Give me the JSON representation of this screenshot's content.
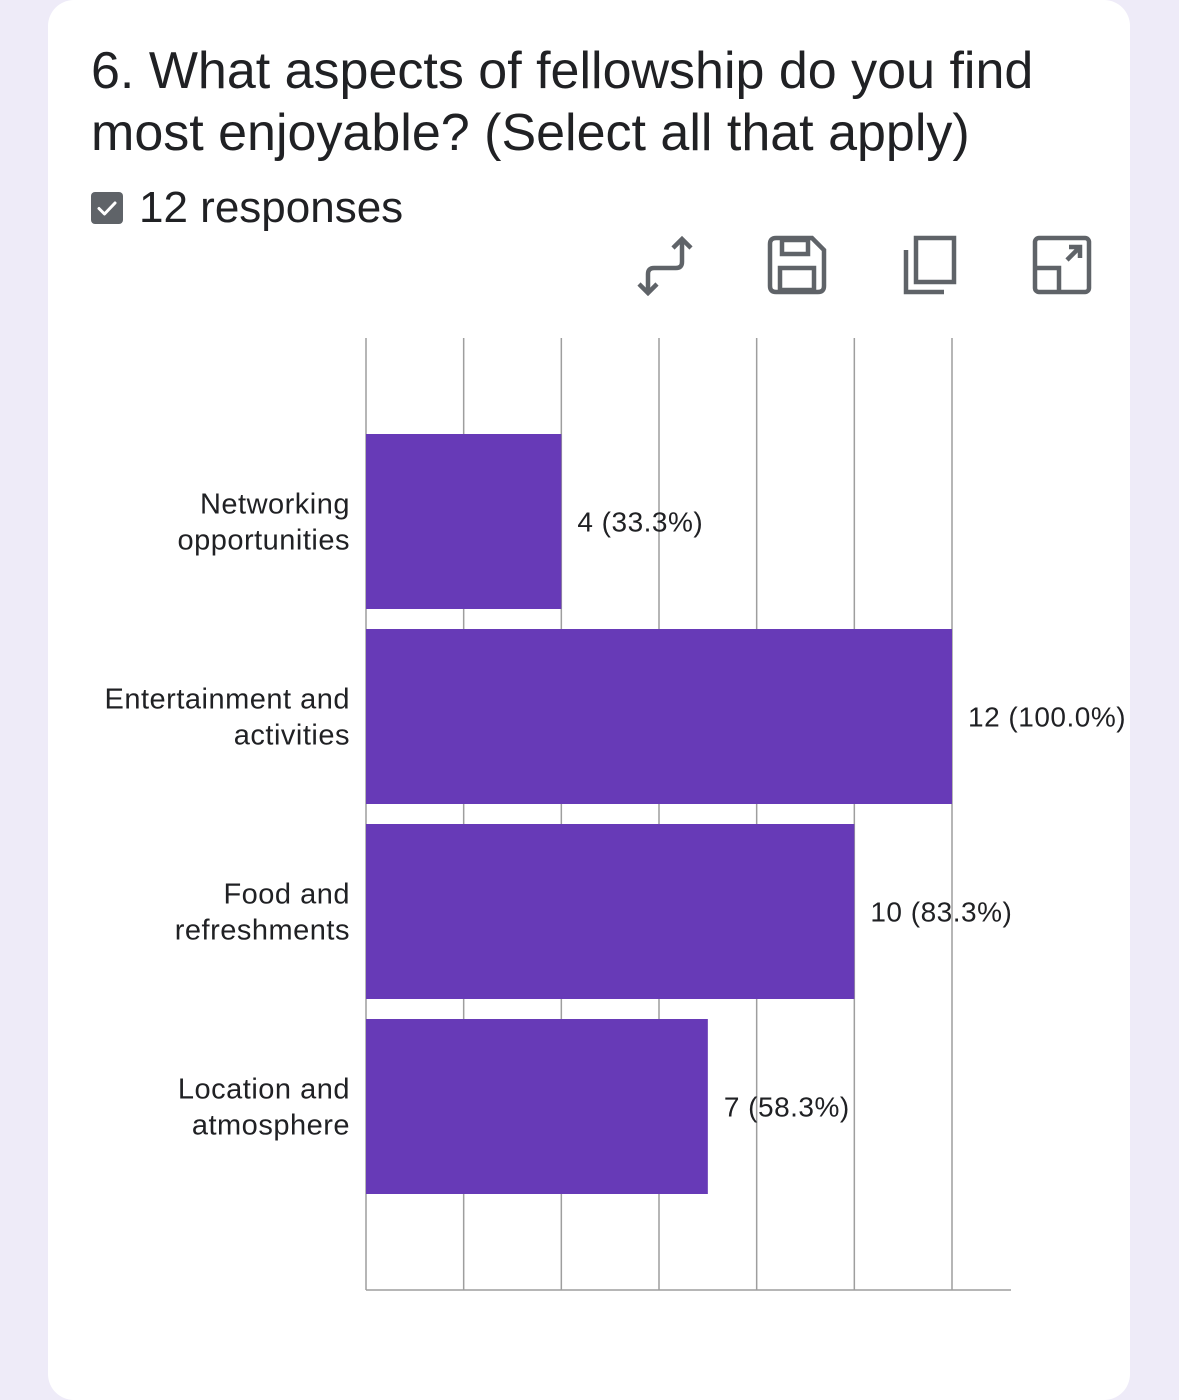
{
  "question": {
    "title": "6. What aspects of fellowship do you find most enjoyable? (Select all that apply)",
    "responses": "12 responses"
  },
  "toolbar": {
    "icons": [
      "swap-axes-icon",
      "save-icon",
      "copy-icon",
      "expand-icon"
    ]
  },
  "colors": {
    "bar": "#673ab7",
    "grid": "#9e9e9e",
    "text": "#202124"
  },
  "chart_data": {
    "type": "bar",
    "orientation": "horizontal",
    "categories": [
      [
        "Networking",
        "opportunities"
      ],
      [
        "Entertainment and",
        "activities"
      ],
      [
        "Food and",
        "refreshments"
      ],
      [
        "Location and",
        "atmosphere"
      ]
    ],
    "values": [
      4,
      12,
      10,
      7
    ],
    "data_labels": [
      "4 (33.3%)",
      "12 (100.0%)",
      "10 (83.3%)",
      "7 (58.3%)"
    ],
    "xlim": [
      0,
      12
    ],
    "grid": true
  }
}
